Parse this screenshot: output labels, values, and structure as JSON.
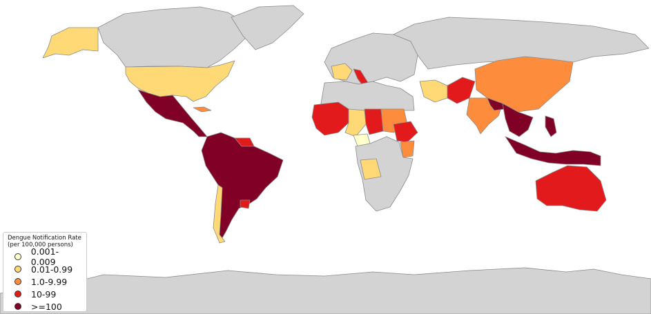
{
  "colors": {
    "no_data": "#d3d3d3",
    "border": "#8a8a8a",
    "cat0": "#ffffcc",
    "cat1": "#fed976",
    "cat2": "#fd8d3c",
    "cat3": "#e31a1c",
    "cat4": "#800026"
  },
  "legend": {
    "title": "Dengue Notification Rate",
    "subtitle": "(per 100,000 persons)",
    "items": [
      {
        "label": "0.001-0.009",
        "color": "#ffffcc"
      },
      {
        "label": "0.01-0.99",
        "color": "#fed976"
      },
      {
        "label": "1.0-9.99",
        "color": "#fd8d3c"
      },
      {
        "label": "10-99",
        "color": "#e31a1c"
      },
      {
        "label": ">=100",
        "color": "#800026"
      }
    ]
  },
  "regions": [
    {
      "name": "canada",
      "category": -1
    },
    {
      "name": "greenland",
      "category": -1
    },
    {
      "name": "alaska",
      "category": 1
    },
    {
      "name": "usa",
      "category": 1
    },
    {
      "name": "cuba",
      "category": 2
    },
    {
      "name": "mexico-central-america",
      "category": 4
    },
    {
      "name": "south-america",
      "category": 4
    },
    {
      "name": "chile",
      "category": 1
    },
    {
      "name": "uruguay",
      "category": 3
    },
    {
      "name": "guyana",
      "category": 3
    },
    {
      "name": "europe",
      "category": -1
    },
    {
      "name": "france",
      "category": 1
    },
    {
      "name": "italy",
      "category": 3
    },
    {
      "name": "russia",
      "category": -1
    },
    {
      "name": "iran",
      "category": 1
    },
    {
      "name": "pakistan",
      "category": 3
    },
    {
      "name": "india",
      "category": 2
    },
    {
      "name": "china",
      "category": 2
    },
    {
      "name": "bangladesh",
      "category": 4
    },
    {
      "name": "indochina",
      "category": 4
    },
    {
      "name": "indonesia",
      "category": 4
    },
    {
      "name": "philippines",
      "category": 4
    },
    {
      "name": "australia",
      "category": 3
    },
    {
      "name": "north-africa",
      "category": -1
    },
    {
      "name": "west-africa",
      "category": 3
    },
    {
      "name": "central-west-africa",
      "category": 1
    },
    {
      "name": "nigeria-area",
      "category": 0
    },
    {
      "name": "chad",
      "category": 3
    },
    {
      "name": "sudan",
      "category": 2
    },
    {
      "name": "ethiopia",
      "category": 3
    },
    {
      "name": "kenya",
      "category": 2
    },
    {
      "name": "angola",
      "category": 1
    },
    {
      "name": "southern-africa",
      "category": -1
    },
    {
      "name": "antarctica",
      "category": -1
    }
  ]
}
